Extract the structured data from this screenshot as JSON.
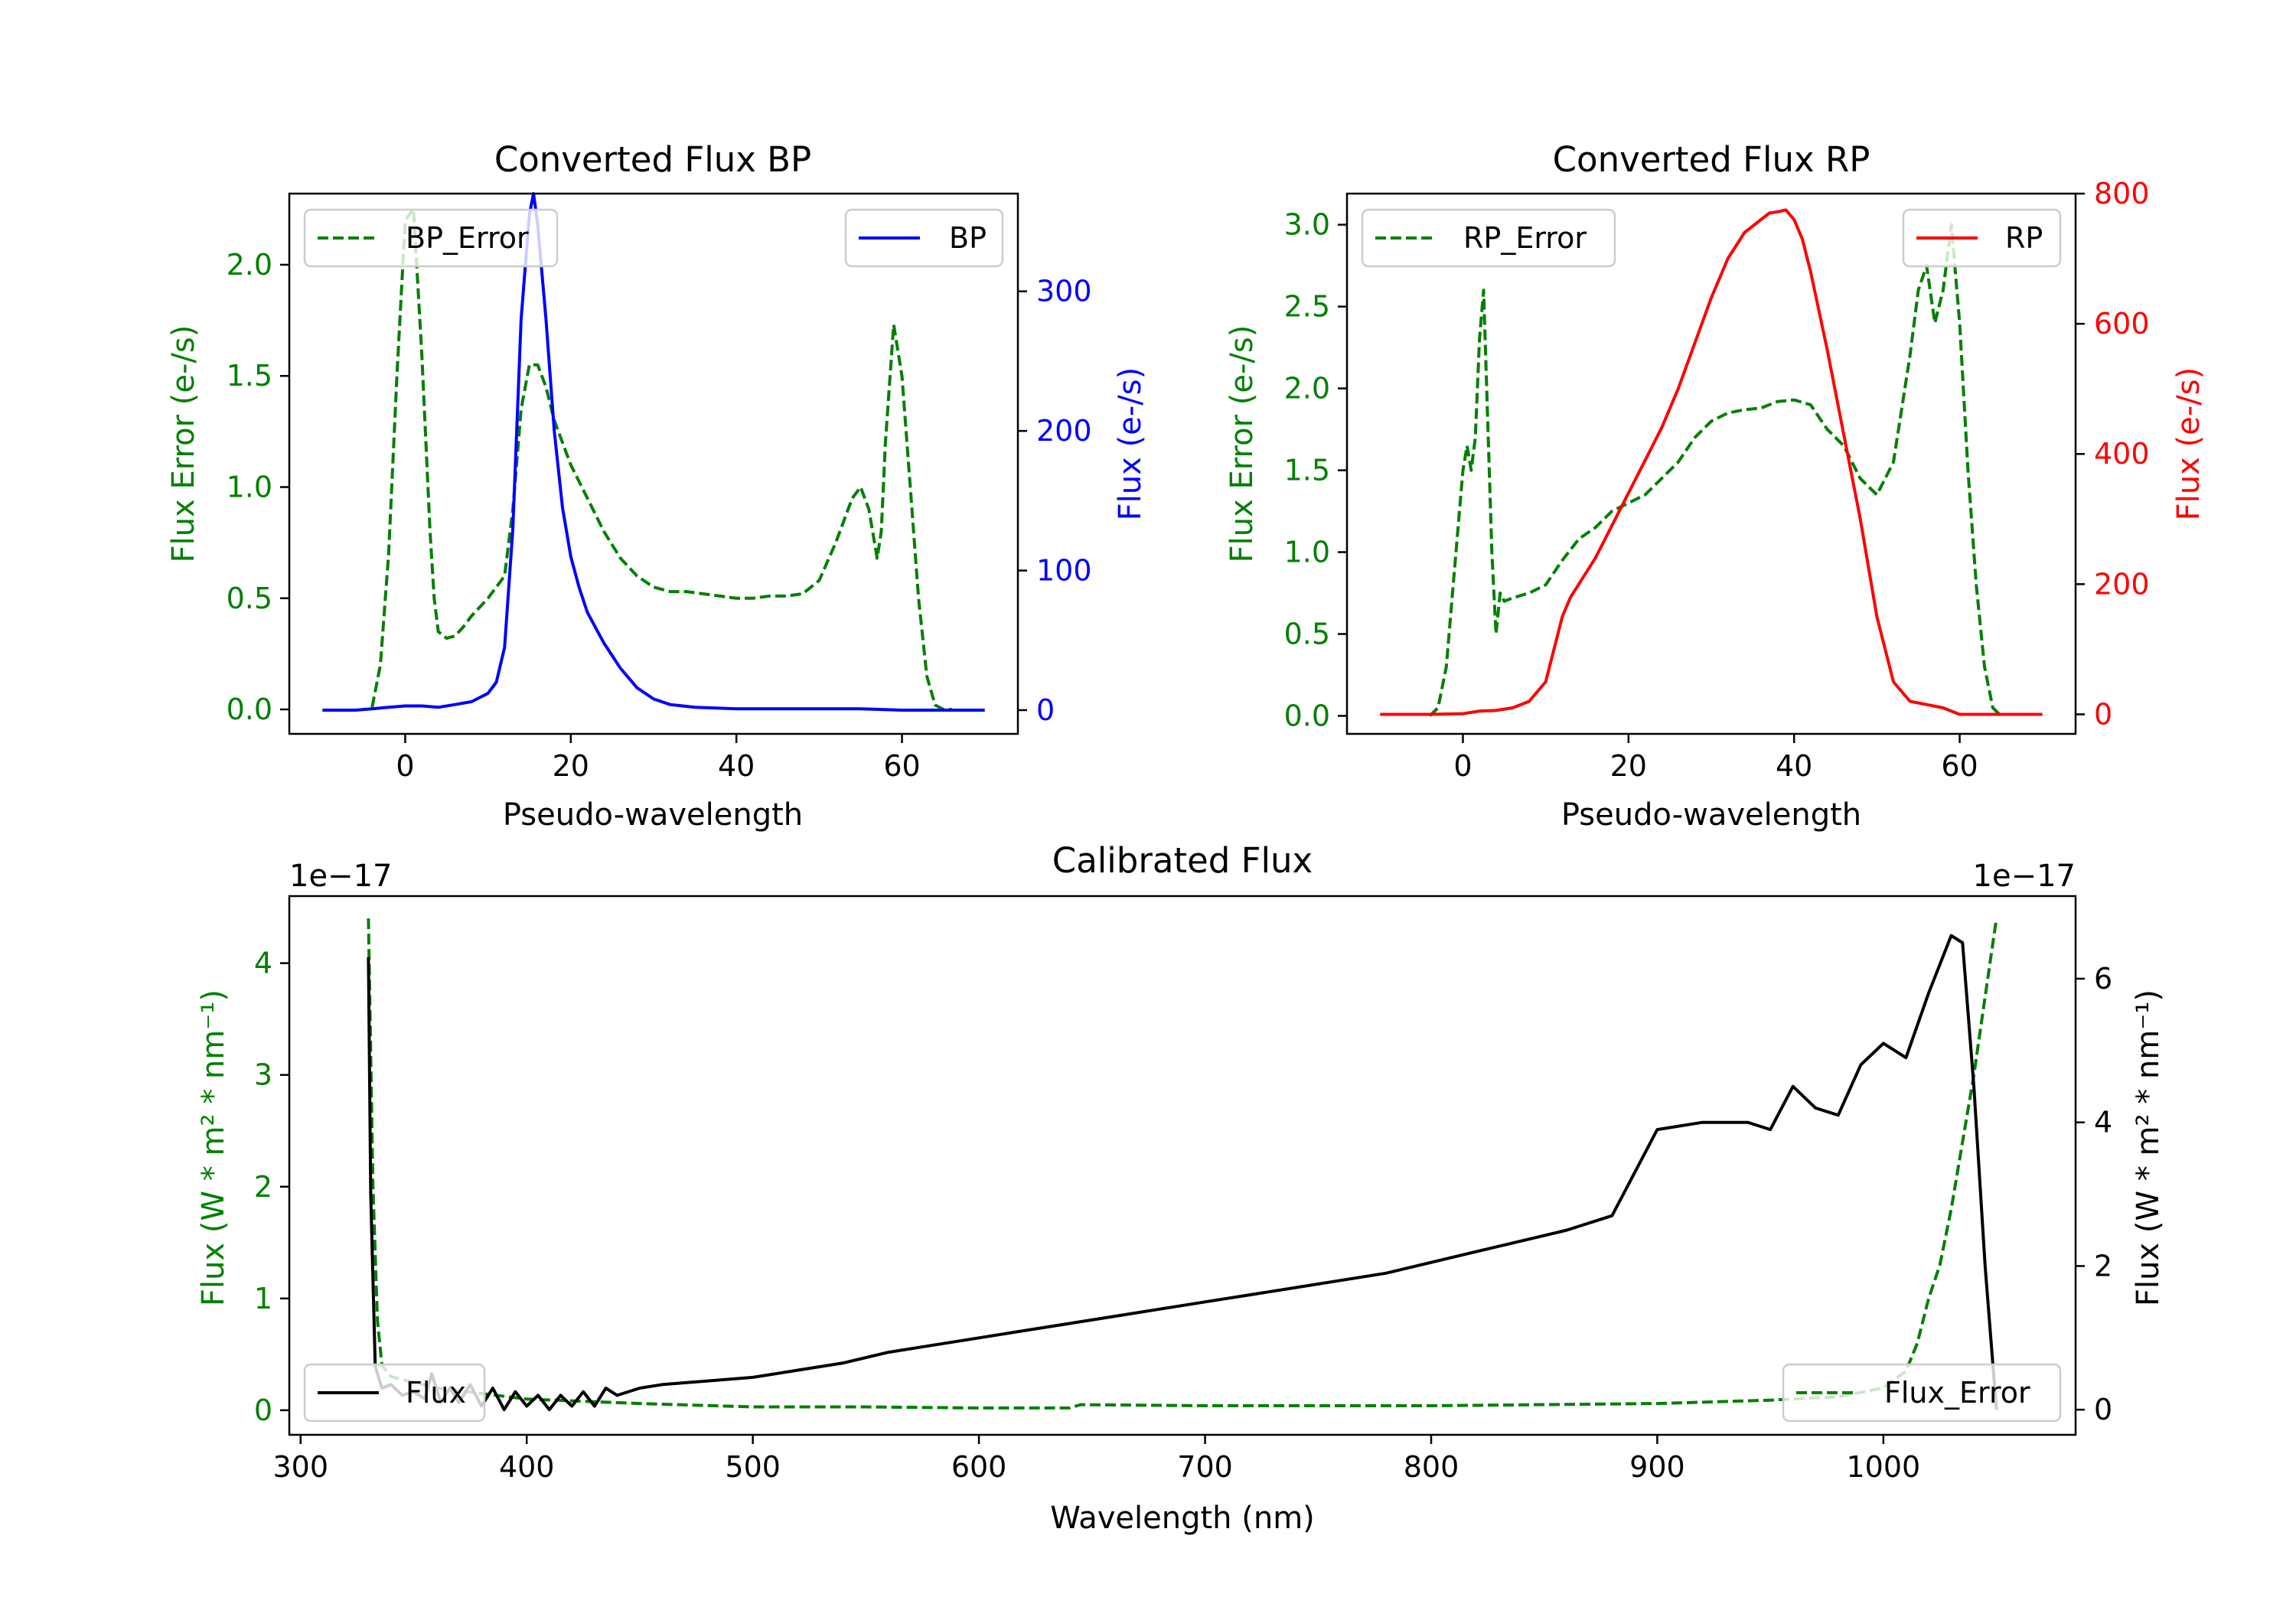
{
  "chart_data": [
    {
      "id": "bp",
      "type": "line",
      "title": "Converted Flux BP",
      "xlabel": "Pseudo-wavelength",
      "xlim": [
        -14,
        74
      ],
      "xticks": [
        0,
        20,
        40,
        60
      ],
      "left_axis": {
        "label": "Flux Error (e-/s)",
        "color": "#008000",
        "ylim": [
          -0.11,
          2.32
        ],
        "ticks": [
          "0.0",
          "0.5",
          "1.0",
          "1.5",
          "2.0"
        ]
      },
      "right_axis": {
        "label": "Flux (e-/s)",
        "color": "#0000ff",
        "ylim": [
          -17,
          370
        ],
        "ticks": [
          "0",
          "100",
          "200",
          "300"
        ]
      },
      "legends": [
        {
          "label": "BP_Error",
          "position": "upper left",
          "style": "dashed",
          "color": "#008000"
        },
        {
          "label": "BP",
          "position": "upper right",
          "style": "solid",
          "color": "#0000ff"
        }
      ],
      "series": [
        {
          "name": "BP_Error",
          "axis": "left",
          "color": "#008000",
          "dash": true,
          "x": [
            -4,
            -3,
            -2,
            -1,
            0,
            1,
            2,
            3,
            3.5,
            4,
            5,
            6,
            7,
            8,
            10,
            12,
            13,
            14,
            15,
            16,
            17,
            18,
            19,
            20,
            22,
            24,
            26,
            28,
            30,
            32,
            34,
            36,
            38,
            40,
            42,
            44,
            46,
            48,
            50,
            52,
            53,
            54,
            55,
            56,
            57,
            57.5,
            58,
            59,
            60,
            61,
            62,
            63,
            64,
            65,
            66
          ],
          "y": [
            0.01,
            0.2,
            0.7,
            1.5,
            2.2,
            2.25,
            1.6,
            0.8,
            0.5,
            0.35,
            0.32,
            0.33,
            0.37,
            0.42,
            0.5,
            0.6,
            0.9,
            1.35,
            1.55,
            1.55,
            1.45,
            1.3,
            1.2,
            1.1,
            0.95,
            0.8,
            0.68,
            0.6,
            0.55,
            0.53,
            0.53,
            0.52,
            0.51,
            0.5,
            0.5,
            0.51,
            0.51,
            0.52,
            0.58,
            0.75,
            0.85,
            0.95,
            1.0,
            0.9,
            0.68,
            0.8,
            1.2,
            1.73,
            1.5,
            1.0,
            0.5,
            0.15,
            0.02,
            0.0,
            0.0
          ]
        },
        {
          "name": "BP",
          "axis": "right",
          "color": "#0000ff",
          "dash": false,
          "x": [
            -10,
            -6,
            -4,
            -2,
            0,
            2,
            4,
            6,
            8,
            10,
            11,
            12,
            13,
            14,
            15,
            15.5,
            16,
            17,
            18,
            19,
            20,
            21,
            22,
            24,
            26,
            28,
            30,
            32,
            35,
            40,
            45,
            50,
            55,
            60,
            65,
            70
          ],
          "y": [
            0,
            0,
            1,
            2,
            3,
            3,
            2,
            4,
            6,
            12,
            20,
            45,
            130,
            280,
            355,
            370,
            348,
            280,
            200,
            145,
            110,
            88,
            70,
            48,
            30,
            16,
            8,
            4,
            2,
            1,
            1,
            1,
            1,
            0,
            0,
            0
          ]
        }
      ]
    },
    {
      "id": "rp",
      "type": "line",
      "title": "Converted Flux RP",
      "xlabel": "Pseudo-wavelength",
      "xlim": [
        -14,
        74
      ],
      "xticks": [
        0,
        20,
        40,
        60
      ],
      "left_axis": {
        "label": "Flux Error (e-/s)",
        "color": "#008000",
        "ylim": [
          -0.11,
          3.19
        ],
        "ticks": [
          "0.0",
          "0.5",
          "1.0",
          "1.5",
          "2.0",
          "2.5",
          "3.0"
        ]
      },
      "right_axis": {
        "label": "Flux (e-/s)",
        "color": "#ff0000",
        "ylim": [
          -30,
          800
        ],
        "ticks": [
          "0",
          "200",
          "400",
          "600",
          "800"
        ]
      },
      "legends": [
        {
          "label": "RP_Error",
          "position": "upper left",
          "style": "dashed",
          "color": "#008000"
        },
        {
          "label": "RP",
          "position": "upper right",
          "style": "solid",
          "color": "#ff0000"
        }
      ],
      "series": [
        {
          "name": "RP_Error",
          "axis": "left",
          "color": "#008000",
          "dash": true,
          "x": [
            -4,
            -3,
            -2,
            -1,
            0,
            0.5,
            1,
            1.5,
            2,
            2.5,
            3,
            3.5,
            4,
            4.5,
            5,
            6,
            8,
            10,
            12,
            14,
            16,
            18,
            20,
            22,
            24,
            26,
            28,
            30,
            32,
            34,
            36,
            38,
            40,
            42,
            44,
            46,
            48,
            50,
            52,
            54,
            55,
            56,
            57,
            58,
            59,
            60,
            61,
            62,
            63,
            64,
            65
          ],
          "y": [
            0.0,
            0.05,
            0.3,
            0.9,
            1.5,
            1.65,
            1.5,
            1.7,
            2.3,
            2.6,
            1.8,
            1.0,
            0.5,
            0.75,
            0.7,
            0.72,
            0.75,
            0.8,
            0.95,
            1.08,
            1.15,
            1.25,
            1.3,
            1.35,
            1.45,
            1.55,
            1.7,
            1.8,
            1.85,
            1.87,
            1.88,
            1.92,
            1.93,
            1.9,
            1.75,
            1.65,
            1.45,
            1.35,
            1.55,
            2.2,
            2.6,
            2.75,
            2.4,
            2.6,
            3.0,
            2.4,
            1.5,
            0.8,
            0.3,
            0.05,
            0.0
          ]
        },
        {
          "name": "RP",
          "axis": "right",
          "color": "#ff0000",
          "dash": false,
          "x": [
            -10,
            -4,
            0,
            2,
            4,
            6,
            8,
            10,
            11,
            12,
            13,
            14,
            16,
            18,
            20,
            22,
            24,
            26,
            28,
            30,
            32,
            34,
            36,
            37,
            38,
            39,
            40,
            41,
            42,
            44,
            46,
            48,
            50,
            52,
            54,
            56,
            58,
            60,
            62,
            66,
            70
          ],
          "y": [
            0,
            0,
            1,
            5,
            6,
            10,
            20,
            50,
            100,
            150,
            180,
            200,
            240,
            290,
            340,
            390,
            440,
            500,
            570,
            640,
            700,
            740,
            760,
            770,
            772,
            775,
            760,
            730,
            680,
            560,
            430,
            300,
            150,
            50,
            20,
            15,
            10,
            0,
            0,
            0,
            0
          ]
        }
      ]
    },
    {
      "id": "cal",
      "type": "line",
      "title": "Calibrated Flux",
      "xlabel": "Wavelength (nm)",
      "xlim": [
        295,
        1085
      ],
      "xticks": [
        300,
        400,
        500,
        600,
        700,
        800,
        900,
        1000
      ],
      "offset_left": "1e−17",
      "offset_right": "1e−17",
      "left_axis": {
        "label": "Flux (W * m² * nm⁻¹)",
        "color": "#008000",
        "ylim": [
          -0.22,
          4.6
        ],
        "ticks": [
          "0",
          "1",
          "2",
          "3",
          "4"
        ]
      },
      "right_axis": {
        "label": "Flux (W * m² * nm⁻¹)",
        "color": "#000000",
        "ylim": [
          -0.35,
          7.15
        ],
        "ticks": [
          "0",
          "2",
          "4",
          "6"
        ]
      },
      "legends": [
        {
          "label": "Flux",
          "position": "lower left",
          "style": "solid",
          "color": "#000000"
        },
        {
          "label": "Flux_Error",
          "position": "lower right",
          "style": "dashed",
          "color": "#008000"
        }
      ],
      "series": [
        {
          "name": "Flux_Error",
          "axis": "left",
          "color": "#008000",
          "dash": true,
          "x": [
            330,
            332,
            334,
            336,
            340,
            350,
            360,
            380,
            400,
            450,
            500,
            550,
            600,
            640,
            645,
            700,
            800,
            900,
            950,
            980,
            1000,
            1010,
            1015,
            1020,
            1025,
            1030,
            1035,
            1040,
            1045,
            1050
          ],
          "y": [
            4.4,
            2.0,
            0.8,
            0.4,
            0.3,
            0.25,
            0.2,
            0.15,
            0.1,
            0.06,
            0.03,
            0.03,
            0.02,
            0.02,
            0.05,
            0.04,
            0.04,
            0.06,
            0.09,
            0.12,
            0.2,
            0.35,
            0.6,
            1.0,
            1.3,
            1.8,
            2.4,
            3.0,
            3.7,
            4.4
          ]
        },
        {
          "name": "Flux",
          "axis": "right",
          "color": "#000000",
          "dash": false,
          "x": [
            330,
            331,
            333,
            336,
            340,
            345,
            350,
            355,
            358,
            362,
            366,
            370,
            375,
            380,
            385,
            390,
            395,
            400,
            405,
            410,
            415,
            420,
            425,
            430,
            435,
            440,
            450,
            460,
            480,
            500,
            520,
            540,
            560,
            580,
            600,
            620,
            640,
            660,
            680,
            700,
            720,
            740,
            760,
            780,
            800,
            820,
            840,
            860,
            880,
            900,
            920,
            940,
            950,
            960,
            970,
            980,
            990,
            1000,
            1010,
            1020,
            1030,
            1035,
            1040,
            1045,
            1050
          ],
          "y": [
            6.3,
            3.0,
            0.6,
            0.3,
            0.35,
            0.2,
            0.25,
            0.15,
            0.5,
            0.1,
            0.3,
            0.1,
            0.35,
            0.05,
            0.3,
            0.0,
            0.25,
            0.05,
            0.2,
            0.0,
            0.2,
            0.05,
            0.25,
            0.05,
            0.3,
            0.2,
            0.3,
            0.35,
            0.4,
            0.45,
            0.55,
            0.65,
            0.8,
            0.9,
            1.0,
            1.1,
            1.2,
            1.3,
            1.4,
            1.5,
            1.6,
            1.7,
            1.8,
            1.9,
            2.05,
            2.2,
            2.35,
            2.5,
            2.7,
            3.9,
            4.0,
            4.0,
            3.9,
            4.5,
            4.2,
            4.1,
            4.8,
            5.1,
            4.9,
            5.8,
            6.6,
            6.5,
            4.5,
            2.0,
            0.0
          ]
        }
      ]
    }
  ]
}
